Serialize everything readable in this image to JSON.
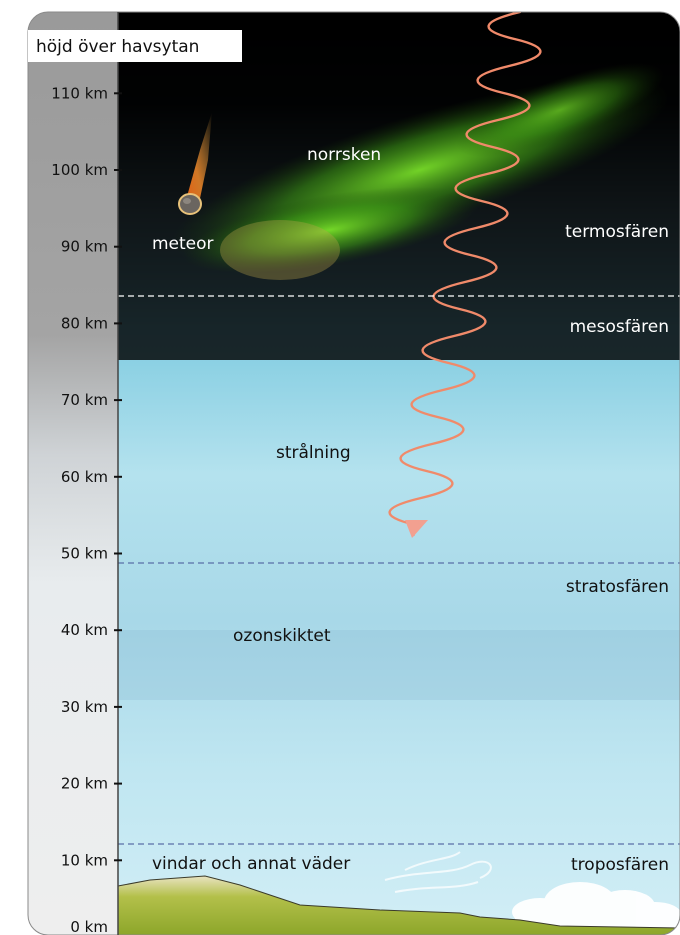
{
  "axis": {
    "title": "höjd över havsytan",
    "ticks": [
      {
        "value": 0,
        "label": "0 km"
      },
      {
        "value": 10,
        "label": "10 km"
      },
      {
        "value": 20,
        "label": "20 km"
      },
      {
        "value": 30,
        "label": "30 km"
      },
      {
        "value": 40,
        "label": "40 km"
      },
      {
        "value": 50,
        "label": "50 km"
      },
      {
        "value": 60,
        "label": "60 km"
      },
      {
        "value": 70,
        "label": "70 km"
      },
      {
        "value": 80,
        "label": "80 km"
      },
      {
        "value": 90,
        "label": "90 km"
      },
      {
        "value": 100,
        "label": "100 km"
      },
      {
        "value": 110,
        "label": "110 km"
      }
    ]
  },
  "layers": {
    "thermosphere": "termosfären",
    "mesosphere": "mesosfären",
    "stratosphere": "stratosfären",
    "troposphere": "troposfären"
  },
  "labels": {
    "aurora": "norrsken",
    "meteor": "meteor",
    "radiation": "strålning",
    "ozone": "ozonskiktet",
    "weather": "vindar och annat väder"
  },
  "colors": {
    "night_sky": "#000000",
    "aurora": "#5fd320",
    "sky_blue": "#8fd6e8",
    "radiation": "#f08a6a",
    "ground": "#9fb23a",
    "boundary_dark": "#5a6fa8"
  }
}
